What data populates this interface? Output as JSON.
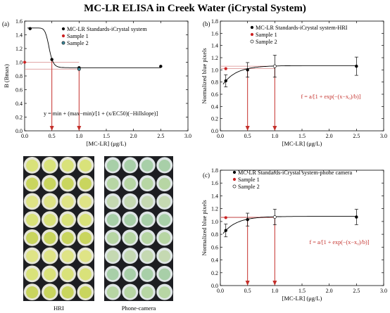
{
  "figure_title": "MC-LR ELISA in Creek Water (iCrystal System)",
  "colors": {
    "standards": "#111111",
    "sample1": "#cc2222",
    "sample2": "#3f8fa3",
    "arrow": "#c4302b",
    "ref_line": "#d88a8a"
  },
  "chart_data": [
    {
      "panel": "(a)",
      "type": "scatter",
      "xlabel": "[MC-LR] (μg/L)",
      "ylabel": "B (Bmax)",
      "xlim": [
        0,
        3.0
      ],
      "ylim": [
        0,
        1.6
      ],
      "xticks": [
        "0.0",
        "0.5",
        "1.0",
        "1.5",
        "2.0",
        "2.5",
        "3.0"
      ],
      "yticks": [
        "0.0",
        "0.2",
        "0.4",
        "0.6",
        "0.8",
        "1.0",
        "1.2",
        "1.4",
        "1.6"
      ],
      "legend": [
        "MC-LR Standards-iCrystal system",
        "Sample 1",
        "Sample 2"
      ],
      "legend_position": "top-right",
      "series": [
        {
          "name": "MC-LR Standards-iCrystal system",
          "x": [
            0.1,
            0.5,
            1.0,
            2.5
          ],
          "y": [
            1.49,
            1.04,
            0.92,
            0.94
          ]
        },
        {
          "name": "Sample 1",
          "x": [
            0.0
          ],
          "y": [
            1.0
          ]
        },
        {
          "name": "Sample 2",
          "x": [
            1.0
          ],
          "y": [
            0.9
          ]
        }
      ],
      "fit": {
        "model": "logistic",
        "min": 0.92,
        "max": 1.5,
        "ec50": 0.45,
        "hill": 12
      },
      "arrows_x": [
        0.5,
        1.0
      ],
      "equation": "y = min + (max−min)/[1 + (x/EC50)(−Hillslope)]",
      "grid": false
    },
    {
      "panel": "(b)",
      "type": "scatter",
      "xlabel": "[MC-LR] (μg/L)",
      "ylabel": "Normalized blue pixels",
      "xlim": [
        0,
        3.0
      ],
      "ylim": [
        0,
        1.8
      ],
      "xticks": [
        "0.0",
        "0.5",
        "1.0",
        "1.5",
        "2.0",
        "2.5",
        "3.0"
      ],
      "yticks": [
        "0.0",
        "0.2",
        "0.4",
        "0.6",
        "0.8",
        "1.0",
        "1.2",
        "1.4",
        "1.6",
        "1.8"
      ],
      "legend": [
        "MC-LR Standards-iCrystal system-HRI",
        "Sample 1",
        "Sample 2"
      ],
      "legend_position": "top-right",
      "series": [
        {
          "name": "MC-LR Standards-iCrystal system-HRI",
          "x": [
            0.1,
            0.5,
            1.0,
            2.5
          ],
          "y": [
            0.82,
            1.0,
            1.06,
            1.06
          ],
          "err": [
            0.1,
            0.12,
            0.18,
            0.15
          ]
        },
        {
          "name": "Sample 1",
          "x": [
            0.1
          ],
          "y": [
            1.02
          ]
        },
        {
          "name": "Sample 2",
          "x": [
            1.0
          ],
          "y": [
            1.06
          ]
        }
      ],
      "fit": {
        "model": "exp",
        "a": 1.07,
        "x0": 0.0,
        "b": 0.12
      },
      "arrows_x": [
        0.5,
        1.0
      ],
      "equation": "f = a/[1 + exp(−(x−x₀)/b)]",
      "grid": false
    },
    {
      "panel": "(c)",
      "type": "scatter",
      "xlabel": "[MC-LR] (μg/L)",
      "ylabel": "Normalized blue pixels",
      "xlim": [
        0,
        3.0
      ],
      "ylim": [
        0,
        1.8
      ],
      "xticks": [
        "0.0",
        "0.5",
        "1.0",
        "1.5",
        "2.0",
        "2.5",
        "3.0"
      ],
      "yticks": [
        "0.0",
        "0.2",
        "0.4",
        "0.6",
        "0.8",
        "1.0",
        "1.2",
        "1.4",
        "1.6",
        "1.8"
      ],
      "legend": [
        "MC-LR Standards-iCrystal system-phone camera",
        "Sample 1",
        "Sample 2"
      ],
      "legend_position": "top-right",
      "series": [
        {
          "name": "MC-LR Standards-iCrystal system-phone camera",
          "x": [
            0.1,
            0.5,
            1.0,
            2.5
          ],
          "y": [
            0.86,
            1.03,
            1.07,
            1.07
          ],
          "err": [
            0.1,
            0.1,
            0.12,
            0.12
          ]
        },
        {
          "name": "Sample 1",
          "x": [
            0.1
          ],
          "y": [
            1.06
          ]
        },
        {
          "name": "Sample 2",
          "x": [
            1.0
          ],
          "y": [
            1.07
          ]
        }
      ],
      "fit": {
        "model": "exp",
        "a": 1.08,
        "x0": 0.0,
        "b": 0.12
      },
      "arrows_x": [
        0.5,
        1.0
      ],
      "equation": "f = a/[1 + exp(−(x−x₀)/b)]",
      "grid": false
    }
  ],
  "photos": [
    {
      "caption": "HRI",
      "tone": "hri"
    },
    {
      "caption": "Phone-camera",
      "tone": "phone"
    }
  ]
}
